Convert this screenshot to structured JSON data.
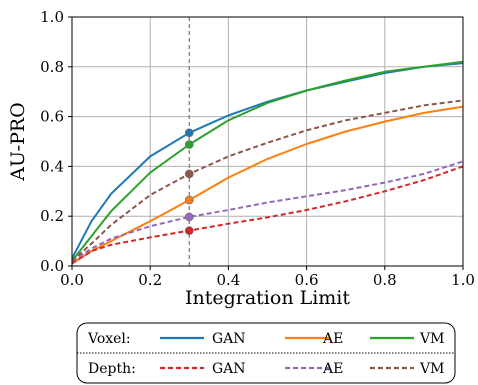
{
  "chart_data": {
    "type": "line",
    "xlabel": "Integration Limit",
    "ylabel": "AU-PRO",
    "xlim": [
      0.0,
      1.0
    ],
    "ylim": [
      0.0,
      1.0
    ],
    "xticks": [
      "0.0",
      "0.2",
      "0.4",
      "0.6",
      "0.8",
      "1.0"
    ],
    "yticks": [
      "0.0",
      "0.2",
      "0.4",
      "0.6",
      "0.8",
      "1.0"
    ],
    "grid": true,
    "vertical_marker_x": 0.3,
    "legend_placement": "bottom, below axes",
    "legend_groups": [
      {
        "label": "Voxel:",
        "series": [
          "voxel_gan",
          "voxel_ae",
          "voxel_vm"
        ]
      },
      {
        "label": "Depth:",
        "series": [
          "depth_gan",
          "depth_ae",
          "depth_vm"
        ]
      }
    ],
    "series": [
      {
        "id": "voxel_gan",
        "name": "GAN",
        "color": "#1f77b4",
        "style": "solid",
        "x": [
          0.0,
          0.05,
          0.1,
          0.2,
          0.3,
          0.4,
          0.5,
          0.6,
          0.7,
          0.8,
          0.9,
          1.0
        ],
        "y": [
          0.03,
          0.18,
          0.29,
          0.44,
          0.535,
          0.605,
          0.66,
          0.705,
          0.74,
          0.775,
          0.8,
          0.815
        ]
      },
      {
        "id": "voxel_ae",
        "name": "AE",
        "color": "#ff7f0e",
        "style": "solid",
        "x": [
          0.0,
          0.05,
          0.1,
          0.2,
          0.3,
          0.4,
          0.5,
          0.6,
          0.7,
          0.8,
          0.9,
          1.0
        ],
        "y": [
          0.01,
          0.06,
          0.1,
          0.18,
          0.265,
          0.355,
          0.43,
          0.49,
          0.54,
          0.58,
          0.615,
          0.64
        ]
      },
      {
        "id": "voxel_vm",
        "name": "VM",
        "color": "#2ca02c",
        "style": "solid",
        "x": [
          0.0,
          0.05,
          0.1,
          0.2,
          0.3,
          0.4,
          0.5,
          0.6,
          0.7,
          0.8,
          0.9,
          1.0
        ],
        "y": [
          0.02,
          0.12,
          0.22,
          0.375,
          0.488,
          0.585,
          0.655,
          0.705,
          0.745,
          0.78,
          0.8,
          0.82
        ]
      },
      {
        "id": "depth_gan",
        "name": "GAN",
        "color": "#d62728",
        "style": "dashed",
        "x": [
          0.0,
          0.05,
          0.1,
          0.2,
          0.3,
          0.4,
          0.5,
          0.6,
          0.7,
          0.8,
          0.9,
          1.0
        ],
        "y": [
          0.01,
          0.06,
          0.085,
          0.115,
          0.142,
          0.17,
          0.195,
          0.225,
          0.26,
          0.3,
          0.345,
          0.4
        ]
      },
      {
        "id": "depth_ae",
        "name": "AE",
        "color": "#9467bd",
        "style": "dashed",
        "x": [
          0.0,
          0.05,
          0.1,
          0.2,
          0.3,
          0.4,
          0.5,
          0.6,
          0.7,
          0.8,
          0.9,
          1.0
        ],
        "y": [
          0.02,
          0.07,
          0.11,
          0.16,
          0.197,
          0.225,
          0.255,
          0.28,
          0.305,
          0.335,
          0.37,
          0.42
        ]
      },
      {
        "id": "depth_vm",
        "name": "VM",
        "color": "#8c564b",
        "style": "dashed",
        "x": [
          0.0,
          0.05,
          0.1,
          0.2,
          0.3,
          0.4,
          0.5,
          0.6,
          0.7,
          0.8,
          0.9,
          1.0
        ],
        "y": [
          0.02,
          0.09,
          0.165,
          0.285,
          0.37,
          0.44,
          0.495,
          0.545,
          0.585,
          0.615,
          0.645,
          0.665
        ]
      }
    ],
    "markers_at_x": 0.3
  }
}
